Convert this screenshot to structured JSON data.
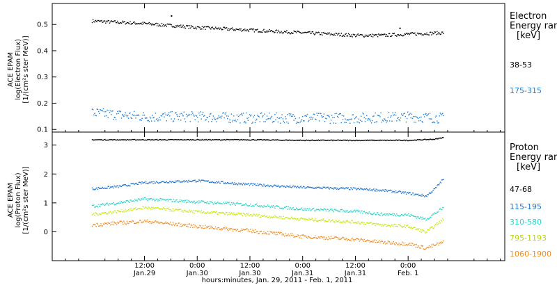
{
  "chart_data": [
    {
      "type": "scatter",
      "panel": "electron",
      "ylabel_lines": [
        "ACE EPAM",
        "log(Electron Flux)",
        "[1/(cm²s ster MeV)]"
      ],
      "ylim": [
        0.09,
        0.58
      ],
      "yticks": [
        0.1,
        0.2,
        0.3,
        0.4,
        0.5
      ],
      "ytick_labels": [
        "0.1",
        "0.2",
        "0.3",
        "0.4",
        "0.5"
      ],
      "legend_header": [
        "Electron",
        "Energy range",
        "[keV]"
      ],
      "series": [
        {
          "name": "38-53",
          "color": "#000000",
          "x_hours": [
            0,
            12,
            24,
            36,
            48,
            60,
            66,
            72,
            80
          ],
          "y": [
            0.515,
            0.505,
            0.49,
            0.48,
            0.47,
            0.46,
            0.46,
            0.465,
            0.47
          ],
          "scatter": 0.006
        },
        {
          "name": "175-315",
          "color": "#1c7fd6",
          "x_hours": [
            0,
            12,
            24,
            36,
            48,
            60,
            72,
            80
          ],
          "y": [
            0.165,
            0.15,
            0.15,
            0.145,
            0.145,
            0.145,
            0.15,
            0.145
          ],
          "scatter": 0.02
        }
      ]
    },
    {
      "type": "scatter",
      "panel": "proton",
      "ylabel_lines": [
        "ACE EPAM",
        "log(Proton Flux)",
        "[1/(cm²s ster MeV)]"
      ],
      "ylim": [
        -1.0,
        3.45
      ],
      "yticks": [
        0,
        1,
        2,
        3
      ],
      "ytick_labels": [
        "0",
        "1",
        "2",
        "3"
      ],
      "legend_header": [
        "Proton",
        "Energy range",
        "[keV]"
      ],
      "series": [
        {
          "name": "47-68",
          "color": "#000000",
          "x_hours": [
            0,
            12,
            24,
            36,
            48,
            60,
            72,
            78,
            80
          ],
          "y": [
            3.2,
            3.2,
            3.2,
            3.2,
            3.18,
            3.18,
            3.18,
            3.22,
            3.28
          ],
          "scatter": 0.015
        },
        {
          "name": "115-195",
          "color": "#1f73d1",
          "x_hours": [
            0,
            6,
            12,
            24,
            36,
            48,
            60,
            66,
            72,
            76,
            78,
            80
          ],
          "y": [
            1.5,
            1.58,
            1.72,
            1.78,
            1.65,
            1.55,
            1.5,
            1.45,
            1.35,
            1.25,
            1.5,
            1.85
          ],
          "scatter": 0.04
        },
        {
          "name": "310-580",
          "color": "#23d6c6",
          "x_hours": [
            0,
            6,
            12,
            24,
            36,
            48,
            60,
            66,
            72,
            76,
            80
          ],
          "y": [
            0.9,
            1.02,
            1.15,
            1.05,
            0.95,
            0.8,
            0.72,
            0.62,
            0.6,
            0.45,
            0.85
          ],
          "scatter": 0.05
        },
        {
          "name": "795-1193",
          "color": "#c8e60f",
          "x_hours": [
            0,
            6,
            12,
            24,
            36,
            48,
            60,
            66,
            72,
            76,
            80
          ],
          "y": [
            0.62,
            0.72,
            0.85,
            0.7,
            0.6,
            0.45,
            0.35,
            0.25,
            0.2,
            0.0,
            0.45
          ],
          "scatter": 0.05
        },
        {
          "name": "1060-1900",
          "color": "#f08a1c",
          "x_hours": [
            0,
            6,
            12,
            24,
            36,
            48,
            60,
            66,
            72,
            76,
            80
          ],
          "y": [
            0.25,
            0.32,
            0.38,
            0.2,
            0.05,
            -0.15,
            -0.25,
            -0.35,
            -0.4,
            -0.55,
            -0.35
          ],
          "scatter": 0.06
        }
      ]
    }
  ],
  "x_axis": {
    "xlim_hours": [
      -9,
      94
    ],
    "tick_hours": [
      12,
      24,
      36,
      48,
      60,
      72
    ],
    "tick_time_labels": [
      "12:00",
      "0:00",
      "12:00",
      "0:00",
      "12:00",
      "0:00"
    ],
    "tick_date_labels": [
      "Jan.29",
      "Jan.30",
      "Jan.30",
      "Jan.31",
      "Jan.31",
      "Feb. 1"
    ],
    "xlabel": "hours:minutes, Jan. 29, 2011 - Feb.  1, 2011"
  },
  "electron_outliers": [
    {
      "x_hours": 18,
      "y": 0.535
    },
    {
      "x_hours": 70,
      "y": 0.488
    }
  ]
}
